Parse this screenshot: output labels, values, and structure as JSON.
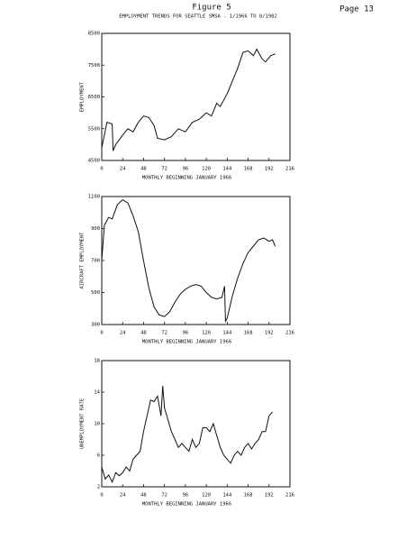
{
  "page": {
    "figure": "Figure 5",
    "page_number": "Page 13"
  },
  "chart_data": [
    {
      "type": "line",
      "title": "EMPLOYMENT TRENDS FOR SEATTLE SMSA - 1/1966 TO 8/1982",
      "x_label": "MONTHLY BEGINNING JANUARY 1966",
      "y_label": "EMPLOYMENT",
      "color": "#111111",
      "x": [
        0,
        3,
        6,
        12,
        13,
        16,
        24,
        30,
        36,
        42,
        48,
        54,
        60,
        64,
        72,
        80,
        88,
        96,
        104,
        112,
        120,
        126,
        132,
        136,
        144,
        150,
        156,
        162,
        168,
        174,
        178,
        184,
        188,
        194,
        199
      ],
      "values": [
        4900,
        5300,
        5700,
        5650,
        4800,
        5000,
        5300,
        5500,
        5400,
        5700,
        5900,
        5850,
        5600,
        5200,
        5150,
        5250,
        5500,
        5400,
        5700,
        5800,
        6000,
        5900,
        6300,
        6200,
        6600,
        7000,
        7400,
        7900,
        7950,
        7800,
        8000,
        7700,
        7600,
        7800,
        7850
      ],
      "xlim": [
        0,
        216
      ],
      "xticks": [
        0,
        24,
        48,
        72,
        96,
        120,
        144,
        168,
        192,
        216
      ],
      "ylim": [
        4500,
        8500
      ],
      "yticks": [
        4500,
        5500,
        6500,
        7500,
        8500
      ]
    },
    {
      "type": "line",
      "x_label": "MONTHLY BEGINNING JANUARY 1966",
      "y_label": "AIRCRAFT EMPLOYMENT",
      "color": "#111111",
      "x": [
        0,
        3,
        8,
        12,
        18,
        24,
        30,
        36,
        42,
        48,
        54,
        60,
        66,
        72,
        78,
        84,
        90,
        96,
        102,
        108,
        114,
        120,
        126,
        132,
        138,
        141,
        142,
        144,
        150,
        156,
        162,
        168,
        174,
        180,
        186,
        192,
        196,
        199
      ],
      "values": [
        700,
        920,
        970,
        960,
        1050,
        1080,
        1060,
        980,
        880,
        700,
        530,
        410,
        360,
        350,
        380,
        440,
        490,
        520,
        540,
        550,
        540,
        500,
        470,
        460,
        470,
        540,
        320,
        340,
        480,
        590,
        680,
        750,
        790,
        830,
        840,
        820,
        830,
        790
      ],
      "xlim": [
        0,
        216
      ],
      "xticks": [
        0,
        24,
        48,
        72,
        96,
        120,
        144,
        168,
        192,
        216
      ],
      "ylim": [
        300,
        1100
      ],
      "yticks": [
        300,
        500,
        700,
        900,
        1100
      ]
    },
    {
      "type": "line",
      "x_label": "MONTHLY BEGINNING JANUARY 1966",
      "y_label": "UNEMPLOYMENT RATE",
      "color": "#111111",
      "x": [
        0,
        4,
        8,
        12,
        16,
        20,
        24,
        28,
        32,
        36,
        40,
        44,
        48,
        52,
        56,
        60,
        64,
        68,
        70,
        72,
        76,
        80,
        84,
        88,
        92,
        96,
        100,
        104,
        108,
        112,
        116,
        120,
        124,
        128,
        132,
        136,
        140,
        144,
        148,
        152,
        156,
        160,
        164,
        168,
        172,
        176,
        180,
        184,
        188,
        192,
        196
      ],
      "values": [
        4.5,
        3,
        3.5,
        2.6,
        3.8,
        3.4,
        3.8,
        4.5,
        4,
        5.5,
        6,
        6.5,
        9,
        11,
        13,
        12.8,
        13.5,
        11,
        14.8,
        12,
        10.5,
        9,
        8,
        7,
        7.5,
        7,
        6.5,
        8,
        7,
        7.5,
        9.5,
        9.5,
        9,
        10,
        8.5,
        7,
        6,
        5.5,
        5,
        6,
        6.5,
        6,
        7,
        7.5,
        6.8,
        7.5,
        8,
        9,
        9,
        11,
        11.5
      ],
      "xlim": [
        0,
        216
      ],
      "xticks": [
        0,
        24,
        48,
        72,
        96,
        120,
        144,
        168,
        192,
        216
      ],
      "ylim": [
        2,
        18
      ],
      "yticks": [
        2,
        6,
        10,
        14,
        18
      ]
    }
  ]
}
